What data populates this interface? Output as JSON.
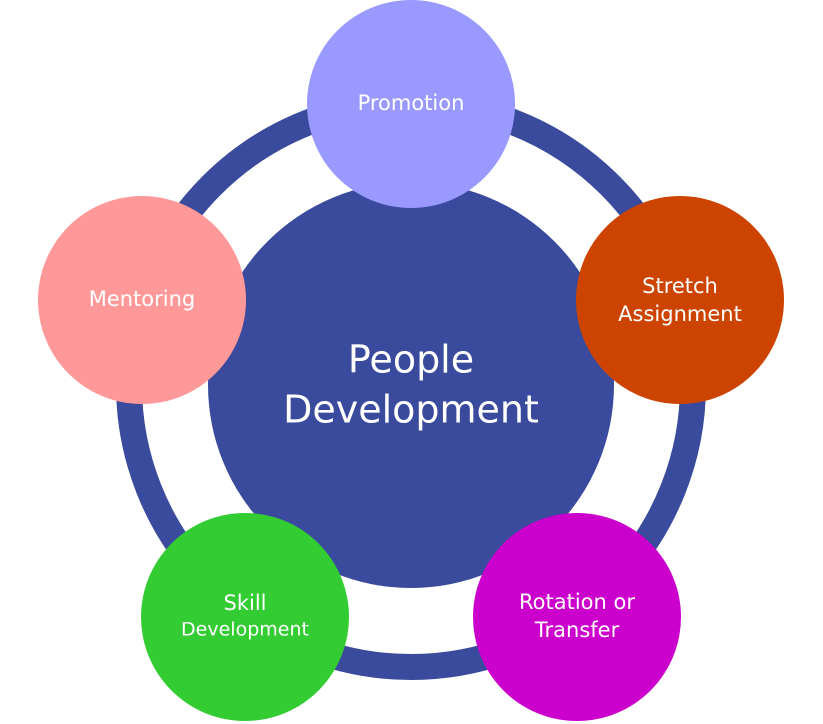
{
  "diagram": {
    "center": {
      "lines": [
        "People",
        "Development"
      ],
      "color": "#3a4a9c"
    },
    "ring_color": "#3a4a9c",
    "nodes": [
      {
        "id": "promotion",
        "lines": [
          "Promotion"
        ],
        "color": "#9999ff"
      },
      {
        "id": "stretch-assignment",
        "lines": [
          "Stretch",
          "Assignment"
        ],
        "color": "#cc4400"
      },
      {
        "id": "rotation-or-transfer",
        "lines": [
          "Rotation or",
          "Transfer"
        ],
        "color": "#cc00cc"
      },
      {
        "id": "skill-development",
        "lines": [
          "Skill",
          "Development"
        ],
        "color": "#33cc33"
      },
      {
        "id": "mentoring",
        "lines": [
          "Mentoring"
        ],
        "color": "#ff9999"
      }
    ]
  }
}
